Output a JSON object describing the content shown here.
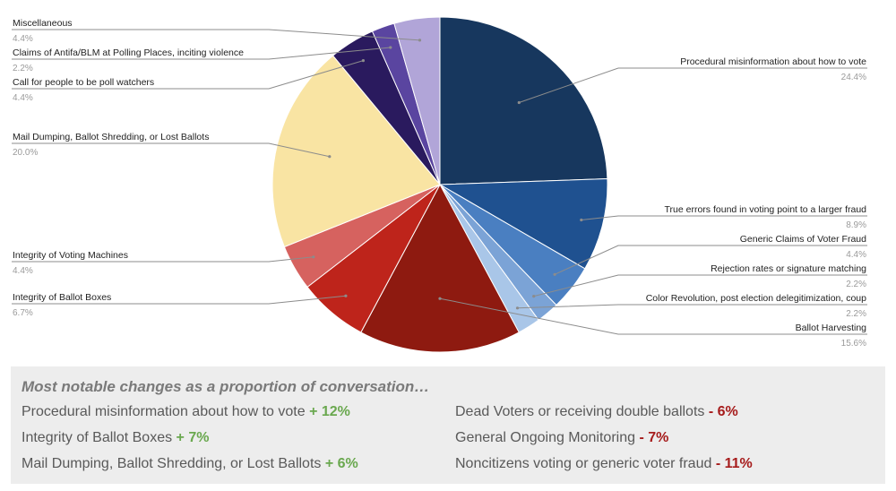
{
  "chart_data": {
    "type": "pie",
    "start_angle_deg": 0,
    "direction": "clockwise",
    "slices": [
      {
        "label": "Procedural misinformation about how to vote",
        "value": 24.4,
        "value_label": "24.4%",
        "color": "#17375e",
        "label_side": "right"
      },
      {
        "label": "True errors found in voting point to a larger fraud",
        "value": 8.9,
        "value_label": "8.9%",
        "color": "#1f5190",
        "label_side": "right"
      },
      {
        "label": "Generic Claims of Voter Fraud",
        "value": 4.4,
        "value_label": "4.4%",
        "color": "#4a7fc1",
        "label_side": "right"
      },
      {
        "label": "Rejection rates or signature matching",
        "value": 2.2,
        "value_label": "2.2%",
        "color": "#7ba3d6",
        "label_side": "right"
      },
      {
        "label": "Color Revolution, post election delegitimization, coup",
        "value": 2.2,
        "value_label": "2.2%",
        "color": "#a9c6e8",
        "label_side": "right"
      },
      {
        "label": "Ballot Harvesting",
        "value": 15.6,
        "value_label": "15.6%",
        "color": "#8e1a10",
        "label_side": "right"
      },
      {
        "label": "Integrity of Ballot Boxes",
        "value": 6.7,
        "value_label": "6.7%",
        "color": "#be241b",
        "label_side": "left"
      },
      {
        "label": "Integrity of Voting Machines",
        "value": 4.4,
        "value_label": "4.4%",
        "color": "#d6625f",
        "label_side": "left"
      },
      {
        "label": "Mail Dumping, Ballot Shredding, or Lost Ballots",
        "value": 20.0,
        "value_label": "20.0%",
        "color": "#f9e4a3",
        "label_side": "left"
      },
      {
        "label": "Call for people to be poll watchers",
        "value": 4.4,
        "value_label": "4.4%",
        "color": "#2a1a5e",
        "label_side": "left"
      },
      {
        "label": "Claims of Antifa/BLM at Polling Places, inciting violence",
        "value": 2.2,
        "value_label": "2.2%",
        "color": "#5a45a0",
        "label_side": "left"
      },
      {
        "label": "Miscellaneous",
        "value": 4.4,
        "value_label": "4.4%",
        "color": "#b1a5d8",
        "label_side": "left"
      }
    ]
  },
  "notable": {
    "heading": "Most notable changes as a proportion of conversation…",
    "left": [
      {
        "text": "Procedural misinformation about how to vote",
        "change": "+ 12%",
        "direction": "up"
      },
      {
        "text": "Integrity of Ballot Boxes",
        "change": "+ 7%",
        "direction": "up"
      },
      {
        "text": "Mail Dumping, Ballot Shredding, or Lost Ballots",
        "change": "+ 6%",
        "direction": "up"
      }
    ],
    "right": [
      {
        "text": "Dead Voters or receiving double ballots",
        "change": "- 6%",
        "direction": "down"
      },
      {
        "text": "General Ongoing Monitoring",
        "change": "- 7%",
        "direction": "down"
      },
      {
        "text": "Noncitizens voting or generic voter fraud",
        "change": "- 11%",
        "direction": "down"
      }
    ]
  }
}
